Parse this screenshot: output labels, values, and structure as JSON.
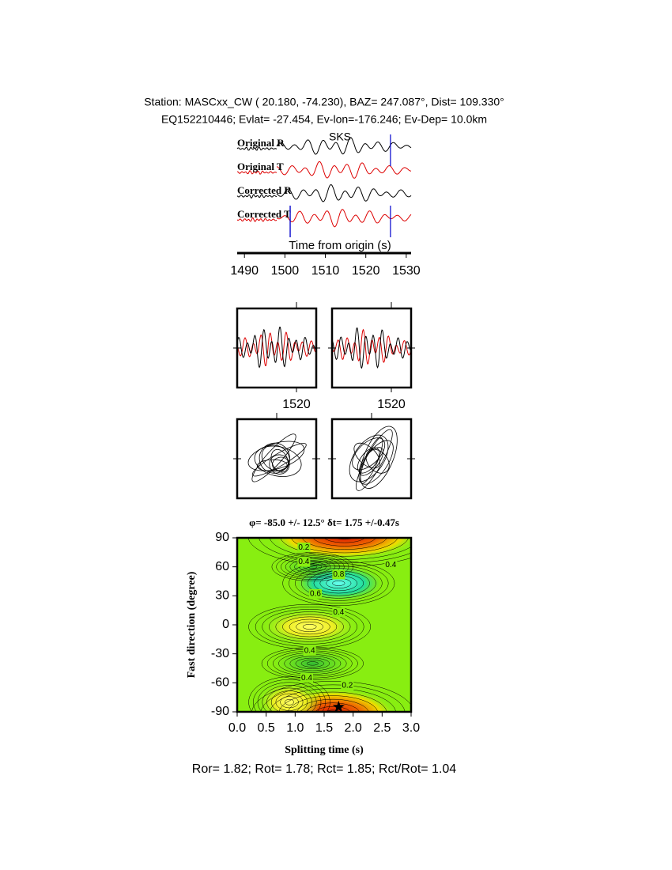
{
  "header": {
    "line1": "Station: MASCxx_CW (  20.180,  -74.230), BAZ=  247.087°, Dist=  109.330°",
    "line2": "EQ152210446; Evlat= -27.454, Ev-lon=-176.246; Ev-Dep= 10.0km"
  },
  "chart_data": [
    {
      "type": "waveform",
      "traces": [
        {
          "name": "Original R",
          "color": "#000000"
        },
        {
          "name": "Original T",
          "color": "#dd0000"
        },
        {
          "name": "Corrected R",
          "color": "#000000"
        },
        {
          "name": "Corrected T",
          "color": "#dd0000"
        }
      ],
      "phase_label": "SKS",
      "phase_color": "#dd0000",
      "pick_color": "#0000cc",
      "picks": [
        1501.3,
        1526.1
      ],
      "xlabel": "Time from origin (s)",
      "xlim": [
        1488.2,
        1531.2
      ],
      "xticks": [
        1490,
        1500,
        1510,
        1520,
        1530
      ]
    },
    {
      "type": "window",
      "xlim": [
        1490,
        1530
      ],
      "xticks": [
        1520
      ],
      "panels": 2
    },
    {
      "type": "contour",
      "title": "φ= -85.0 +/- 12.5° δt= 1.75 +/-0.47s",
      "xlabel": "Splitting time (s)",
      "ylabel": "Fast direction (degree)",
      "xlim": [
        0,
        3
      ],
      "ylim": [
        -90,
        90
      ],
      "xticks": [
        {
          "value": 0,
          "label": "0.0"
        },
        {
          "value": 0.5,
          "label": "0.5"
        },
        {
          "value": 1,
          "label": "1.0"
        },
        {
          "value": 1.5,
          "label": "1.5"
        },
        {
          "value": 2,
          "label": "2.0"
        },
        {
          "value": 2.5,
          "label": "2.5"
        },
        {
          "value": 3,
          "label": "3.0"
        }
      ],
      "yticks": [
        -90,
        -60,
        -30,
        0,
        30,
        60,
        90
      ],
      "best": {
        "x": 1.75,
        "y": -85
      },
      "contour_labels": [
        {
          "x": 1.15,
          "y": 80,
          "value": 0.2
        },
        {
          "x": 1.15,
          "y": 65,
          "value": 0.4
        },
        {
          "x": 1.75,
          "y": 52,
          "value": 0.8
        },
        {
          "x": 1.35,
          "y": 32,
          "value": 0.6
        },
        {
          "x": 1.75,
          "y": 13,
          "value": 0.4
        },
        {
          "x": 2.65,
          "y": 62,
          "value": 0.4
        },
        {
          "x": 1.25,
          "y": -27,
          "value": 0.4
        },
        {
          "x": 1.2,
          "y": -55,
          "value": 0.4
        },
        {
          "x": 1.9,
          "y": -63,
          "value": 0.2
        }
      ]
    }
  ],
  "footer": "Ror= 1.82; Rot= 1.78; Rct= 1.85; Rct/Rot= 1.04"
}
